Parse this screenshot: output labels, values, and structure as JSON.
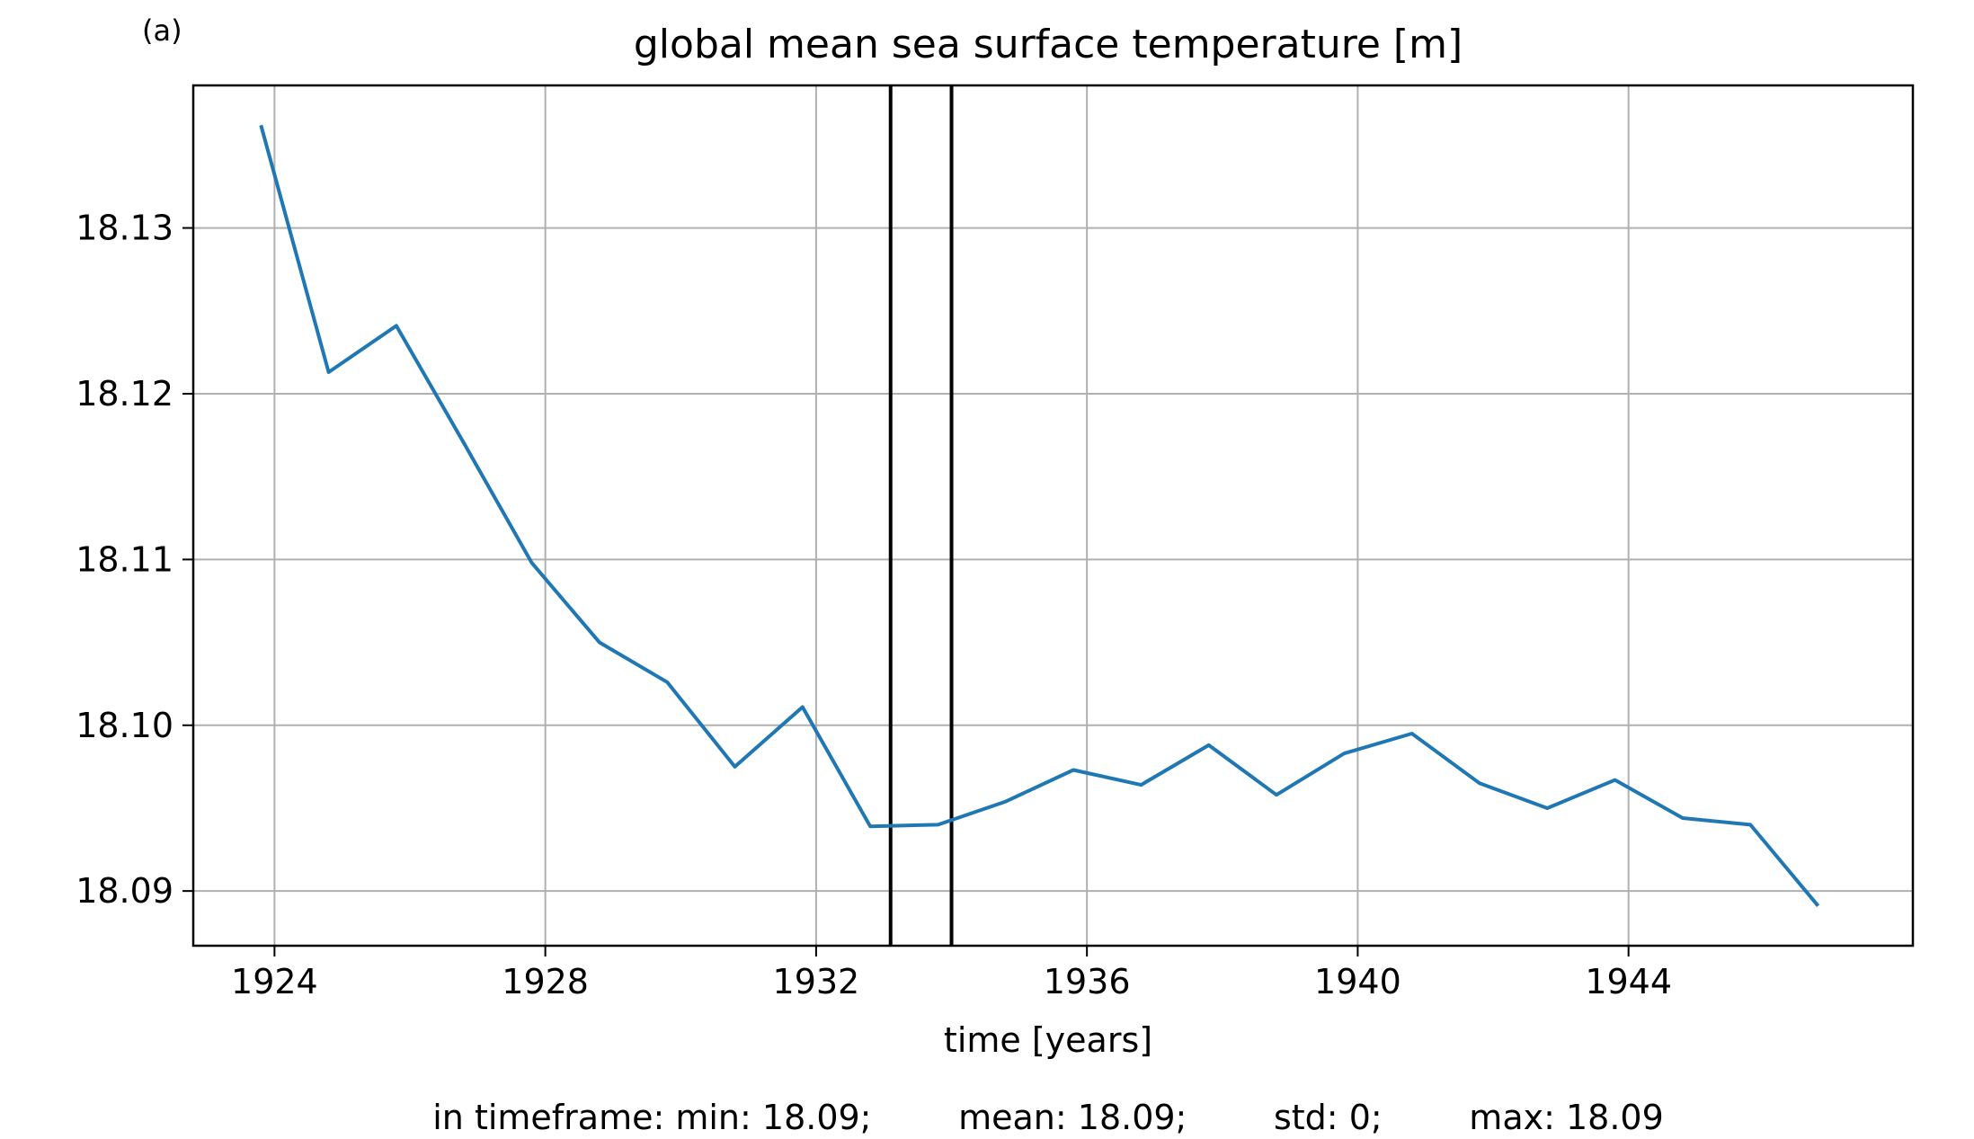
{
  "panel_label": "(a)",
  "chart_data": {
    "type": "line",
    "title": "global mean sea surface temperature [m]",
    "xlabel": "time [years]",
    "ylabel": "",
    "xlim": [
      1922.8,
      1948.2
    ],
    "ylim": [
      18.0867,
      18.1386
    ],
    "xticks": [
      1924,
      1928,
      1932,
      1936,
      1940,
      1944
    ],
    "yticks": [
      18.09,
      18.1,
      18.11,
      18.12,
      18.13
    ],
    "ytick_labels": [
      "18.09",
      "18.10",
      "18.11",
      "18.12",
      "18.13"
    ],
    "grid": true,
    "legend": "none",
    "line_color": "#1f77b4",
    "marker_color": "#000000",
    "series": [
      {
        "x": [
          1923.8,
          1924.8,
          1925.8,
          1926.8,
          1927.8,
          1928.8,
          1929.8,
          1930.8,
          1931.8,
          1932.8,
          1933.8,
          1934.8,
          1935.8,
          1936.8,
          1937.8,
          1938.8,
          1939.8,
          1940.8,
          1941.8,
          1942.8,
          1943.8,
          1944.8,
          1945.8,
          1946.8
        ],
        "y": [
          18.1362,
          18.1213,
          18.1241,
          18.117,
          18.1098,
          18.105,
          18.1026,
          18.0975,
          18.1011,
          18.0939,
          18.094,
          18.0954,
          18.0973,
          18.0964,
          18.0988,
          18.0958,
          18.0983,
          18.0995,
          18.0965,
          18.095,
          18.0967,
          18.0944,
          18.094,
          18.0891
        ]
      }
    ],
    "vlines": [
      1933.1,
      1934.0
    ],
    "stats": {
      "line": "in timeframe: min: 18.09;        mean: 18.09;        std: 0;        max: 18.09"
    }
  }
}
